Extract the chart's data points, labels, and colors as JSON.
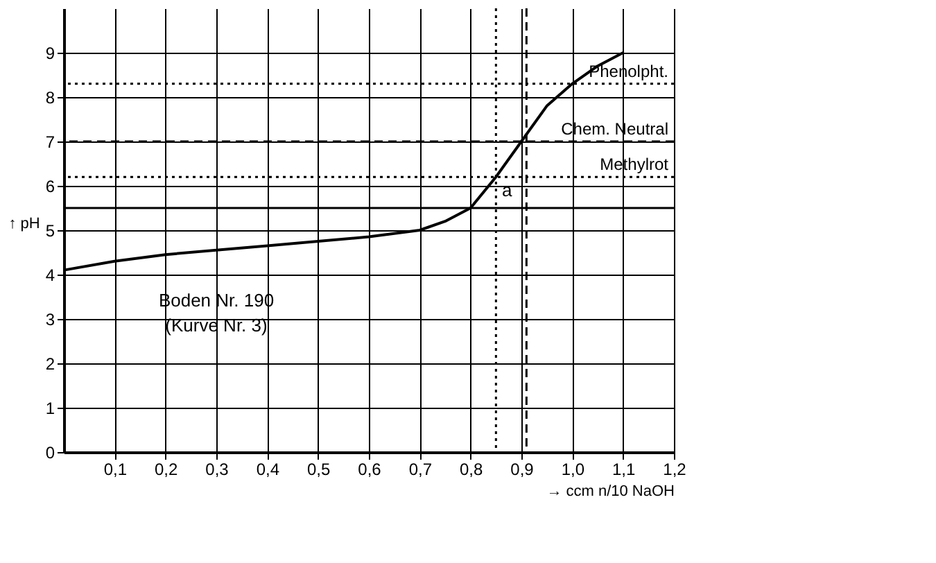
{
  "chart_data": {
    "type": "line",
    "xlabel": "→ ccm n/10 NaOH",
    "ylabel": "↑ pH",
    "x": [
      0,
      0.1,
      0.2,
      0.3,
      0.4,
      0.5,
      0.6,
      0.7,
      0.75,
      0.8,
      0.85,
      0.9,
      0.95,
      1.0,
      1.05,
      1.1
    ],
    "series": [
      {
        "color": "#000000",
        "values": [
          4.1,
          4.3,
          4.45,
          4.55,
          4.65,
          4.75,
          4.85,
          5.0,
          5.2,
          5.5,
          6.2,
          7.0,
          7.8,
          8.3,
          8.7,
          9.0
        ]
      }
    ],
    "xlim": [
      0,
      1.2
    ],
    "ylim": [
      0,
      10
    ],
    "xticks": [
      {
        "value": 0.1,
        "label": "0,1"
      },
      {
        "value": 0.2,
        "label": "0,2"
      },
      {
        "value": 0.3,
        "label": "0,3"
      },
      {
        "value": 0.4,
        "label": "0,4"
      },
      {
        "value": 0.5,
        "label": "0,5"
      },
      {
        "value": 0.6,
        "label": "0,6"
      },
      {
        "value": 0.7,
        "label": "0,7"
      },
      {
        "value": 0.8,
        "label": "0,8"
      },
      {
        "value": 0.9,
        "label": "0,9"
      },
      {
        "value": 1.0,
        "label": "1,0"
      },
      {
        "value": 1.1,
        "label": "1,1"
      },
      {
        "value": 1.2,
        "label": "1,2"
      }
    ],
    "yticks": [
      0,
      1,
      2,
      3,
      4,
      5,
      6,
      7,
      8,
      9
    ],
    "grid": true,
    "marker": "none",
    "line_style": "solid",
    "ref_lines": [
      {
        "axis": "y",
        "value": 8.3,
        "label": "Phenolpht.",
        "color": "#000000",
        "line_style": "dotted"
      },
      {
        "axis": "y",
        "value": 7,
        "label": "Chem. Neutral",
        "color": "#000000",
        "line_style": "dashed"
      },
      {
        "axis": "y",
        "value": 6.2,
        "label": "Methylrot",
        "color": "#000000",
        "line_style": "dotted"
      },
      {
        "axis": "y",
        "value": 5.5,
        "color": "#000000",
        "line_style": "solid"
      },
      {
        "axis": "x",
        "value": 0.85,
        "color": "#000000",
        "line_style": "dotted"
      },
      {
        "axis": "x",
        "value": 0.91,
        "color": "#000000",
        "line_style": "dashed"
      }
    ],
    "annotations": [
      "Boden Nr. 190",
      "(Kurve Nr. 3)",
      {
        "text": "a",
        "x": 0.85,
        "y": 6.2
      }
    ]
  }
}
